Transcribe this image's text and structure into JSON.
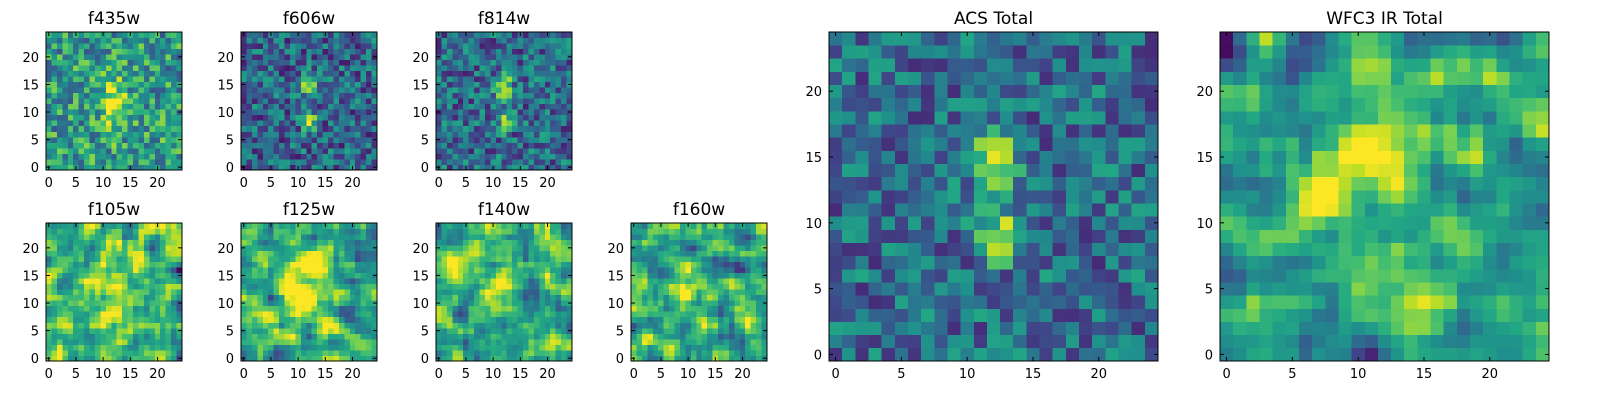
{
  "chart_data": {
    "type": "heatmap",
    "colormap": "viridis",
    "grid": false,
    "panels": [
      {
        "id": "f435w",
        "title": "f435w",
        "size": 25,
        "xticks": [
          0,
          5,
          10,
          15,
          20
        ],
        "yticks": [
          0,
          5,
          10,
          15,
          20
        ],
        "xlim": [
          0,
          24
        ],
        "ylim": [
          0,
          24
        ],
        "sources": [
          {
            "x": 12,
            "y": 11.5,
            "sx": 1.6,
            "sy": 3.5,
            "amp": 0.45
          }
        ],
        "base": 0.55,
        "noise": 0.28,
        "smooth": 0,
        "seed": 11
      },
      {
        "id": "f606w",
        "title": "f606w",
        "size": 25,
        "xticks": [
          0,
          5,
          10,
          15,
          20
        ],
        "yticks": [
          0,
          5,
          10,
          15,
          20
        ],
        "xlim": [
          0,
          24
        ],
        "ylim": [
          0,
          24
        ],
        "sources": [
          {
            "x": 12,
            "y": 15,
            "sx": 0.9,
            "sy": 1.3,
            "amp": 0.65
          },
          {
            "x": 12,
            "y": 8.5,
            "sx": 0.9,
            "sy": 1.2,
            "amp": 0.65
          }
        ],
        "base": 0.33,
        "noise": 0.26,
        "smooth": 0,
        "seed": 23
      },
      {
        "id": "f814w",
        "title": "f814w",
        "size": 25,
        "xticks": [
          0,
          5,
          10,
          15,
          20
        ],
        "yticks": [
          0,
          5,
          10,
          15,
          20
        ],
        "xlim": [
          0,
          24
        ],
        "ylim": [
          0,
          24
        ],
        "sources": [
          {
            "x": 12,
            "y": 14.5,
            "sx": 1.0,
            "sy": 1.6,
            "amp": 0.62
          },
          {
            "x": 12.3,
            "y": 8.5,
            "sx": 0.9,
            "sy": 1.2,
            "amp": 0.6
          }
        ],
        "base": 0.35,
        "noise": 0.26,
        "smooth": 0,
        "seed": 37
      },
      {
        "id": "acs",
        "title": "ACS Total",
        "size": 25,
        "xticks": [
          0,
          5,
          10,
          15,
          20
        ],
        "yticks": [
          0,
          5,
          10,
          15,
          20
        ],
        "xlim": [
          0,
          24
        ],
        "ylim": [
          0,
          24
        ],
        "sources": [
          {
            "x": 12,
            "y": 15,
            "sx": 1.1,
            "sy": 1.6,
            "amp": 0.62
          },
          {
            "x": 12.5,
            "y": 9,
            "sx": 1.0,
            "sy": 1.3,
            "amp": 0.6
          }
        ],
        "base": 0.36,
        "noise": 0.24,
        "smooth": 0,
        "seed": 53
      },
      {
        "id": "f105w",
        "title": "f105w",
        "size": 25,
        "xticks": [
          0,
          5,
          10,
          15,
          20
        ],
        "yticks": [
          0,
          5,
          10,
          15,
          20
        ],
        "xlim": [
          0,
          24
        ],
        "ylim": [
          0,
          24
        ],
        "sources": [
          {
            "x": 11,
            "y": 13,
            "sx": 3,
            "sy": 5,
            "amp": 0.25
          }
        ],
        "base": 0.62,
        "noise": 0.5,
        "smooth": 1,
        "seed": 61
      },
      {
        "id": "f125w",
        "title": "f125w",
        "size": 25,
        "xticks": [
          0,
          5,
          10,
          15,
          20
        ],
        "yticks": [
          0,
          5,
          10,
          15,
          20
        ],
        "xlim": [
          0,
          24
        ],
        "ylim": [
          0,
          24
        ],
        "sources": [
          {
            "x": 12,
            "y": 14,
            "sx": 2.5,
            "sy": 4,
            "amp": 0.3
          }
        ],
        "base": 0.62,
        "noise": 0.5,
        "smooth": 1,
        "seed": 71
      },
      {
        "id": "f140w",
        "title": "f140w",
        "size": 25,
        "xticks": [
          0,
          5,
          10,
          15,
          20
        ],
        "yticks": [
          0,
          5,
          10,
          15,
          20
        ],
        "xlim": [
          0,
          24
        ],
        "ylim": [
          0,
          24
        ],
        "sources": [
          {
            "x": 11.5,
            "y": 13,
            "sx": 2.5,
            "sy": 3.5,
            "amp": 0.3
          }
        ],
        "base": 0.58,
        "noise": 0.5,
        "smooth": 1,
        "seed": 83
      },
      {
        "id": "f160w",
        "title": "f160w",
        "size": 25,
        "xticks": [
          0,
          5,
          10,
          15,
          20
        ],
        "yticks": [
          0,
          5,
          10,
          15,
          20
        ],
        "xlim": [
          0,
          24
        ],
        "ylim": [
          0,
          24
        ],
        "sources": [
          {
            "x": 11,
            "y": 15,
            "sx": 3,
            "sy": 3,
            "amp": 0.25
          }
        ],
        "base": 0.6,
        "noise": 0.5,
        "smooth": 1,
        "seed": 97
      },
      {
        "id": "wfc3",
        "title": "WFC3 IR Total",
        "size": 25,
        "xticks": [
          0,
          5,
          10,
          15,
          20
        ],
        "yticks": [
          0,
          5,
          10,
          15,
          20
        ],
        "xlim": [
          0,
          24
        ],
        "ylim": [
          0,
          24
        ],
        "sources": [
          {
            "x": 11.5,
            "y": 14,
            "sx": 2.5,
            "sy": 4.5,
            "amp": 0.4
          }
        ],
        "base": 0.58,
        "noise": 0.4,
        "smooth": 1,
        "seed": 103
      }
    ]
  }
}
